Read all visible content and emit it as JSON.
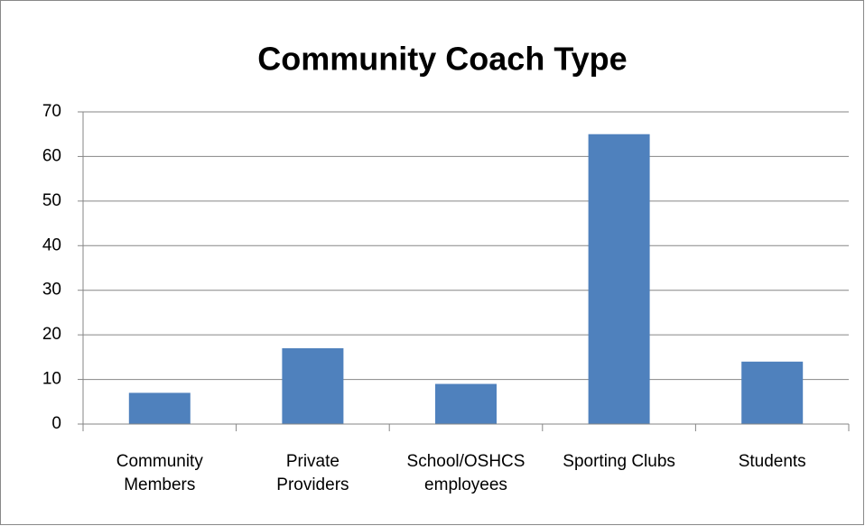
{
  "chart_data": {
    "type": "bar",
    "title": "Community Coach Type",
    "categories": [
      "Community Members",
      "Private Providers",
      "School/OSHCS employees",
      "Sporting Clubs",
      "Students"
    ],
    "values": [
      7,
      17,
      9,
      65,
      14
    ],
    "color": "#4f81bd",
    "ylim": [
      0,
      70
    ],
    "yticks": [
      0,
      10,
      20,
      30,
      40,
      50,
      60,
      70
    ],
    "grid": true
  }
}
